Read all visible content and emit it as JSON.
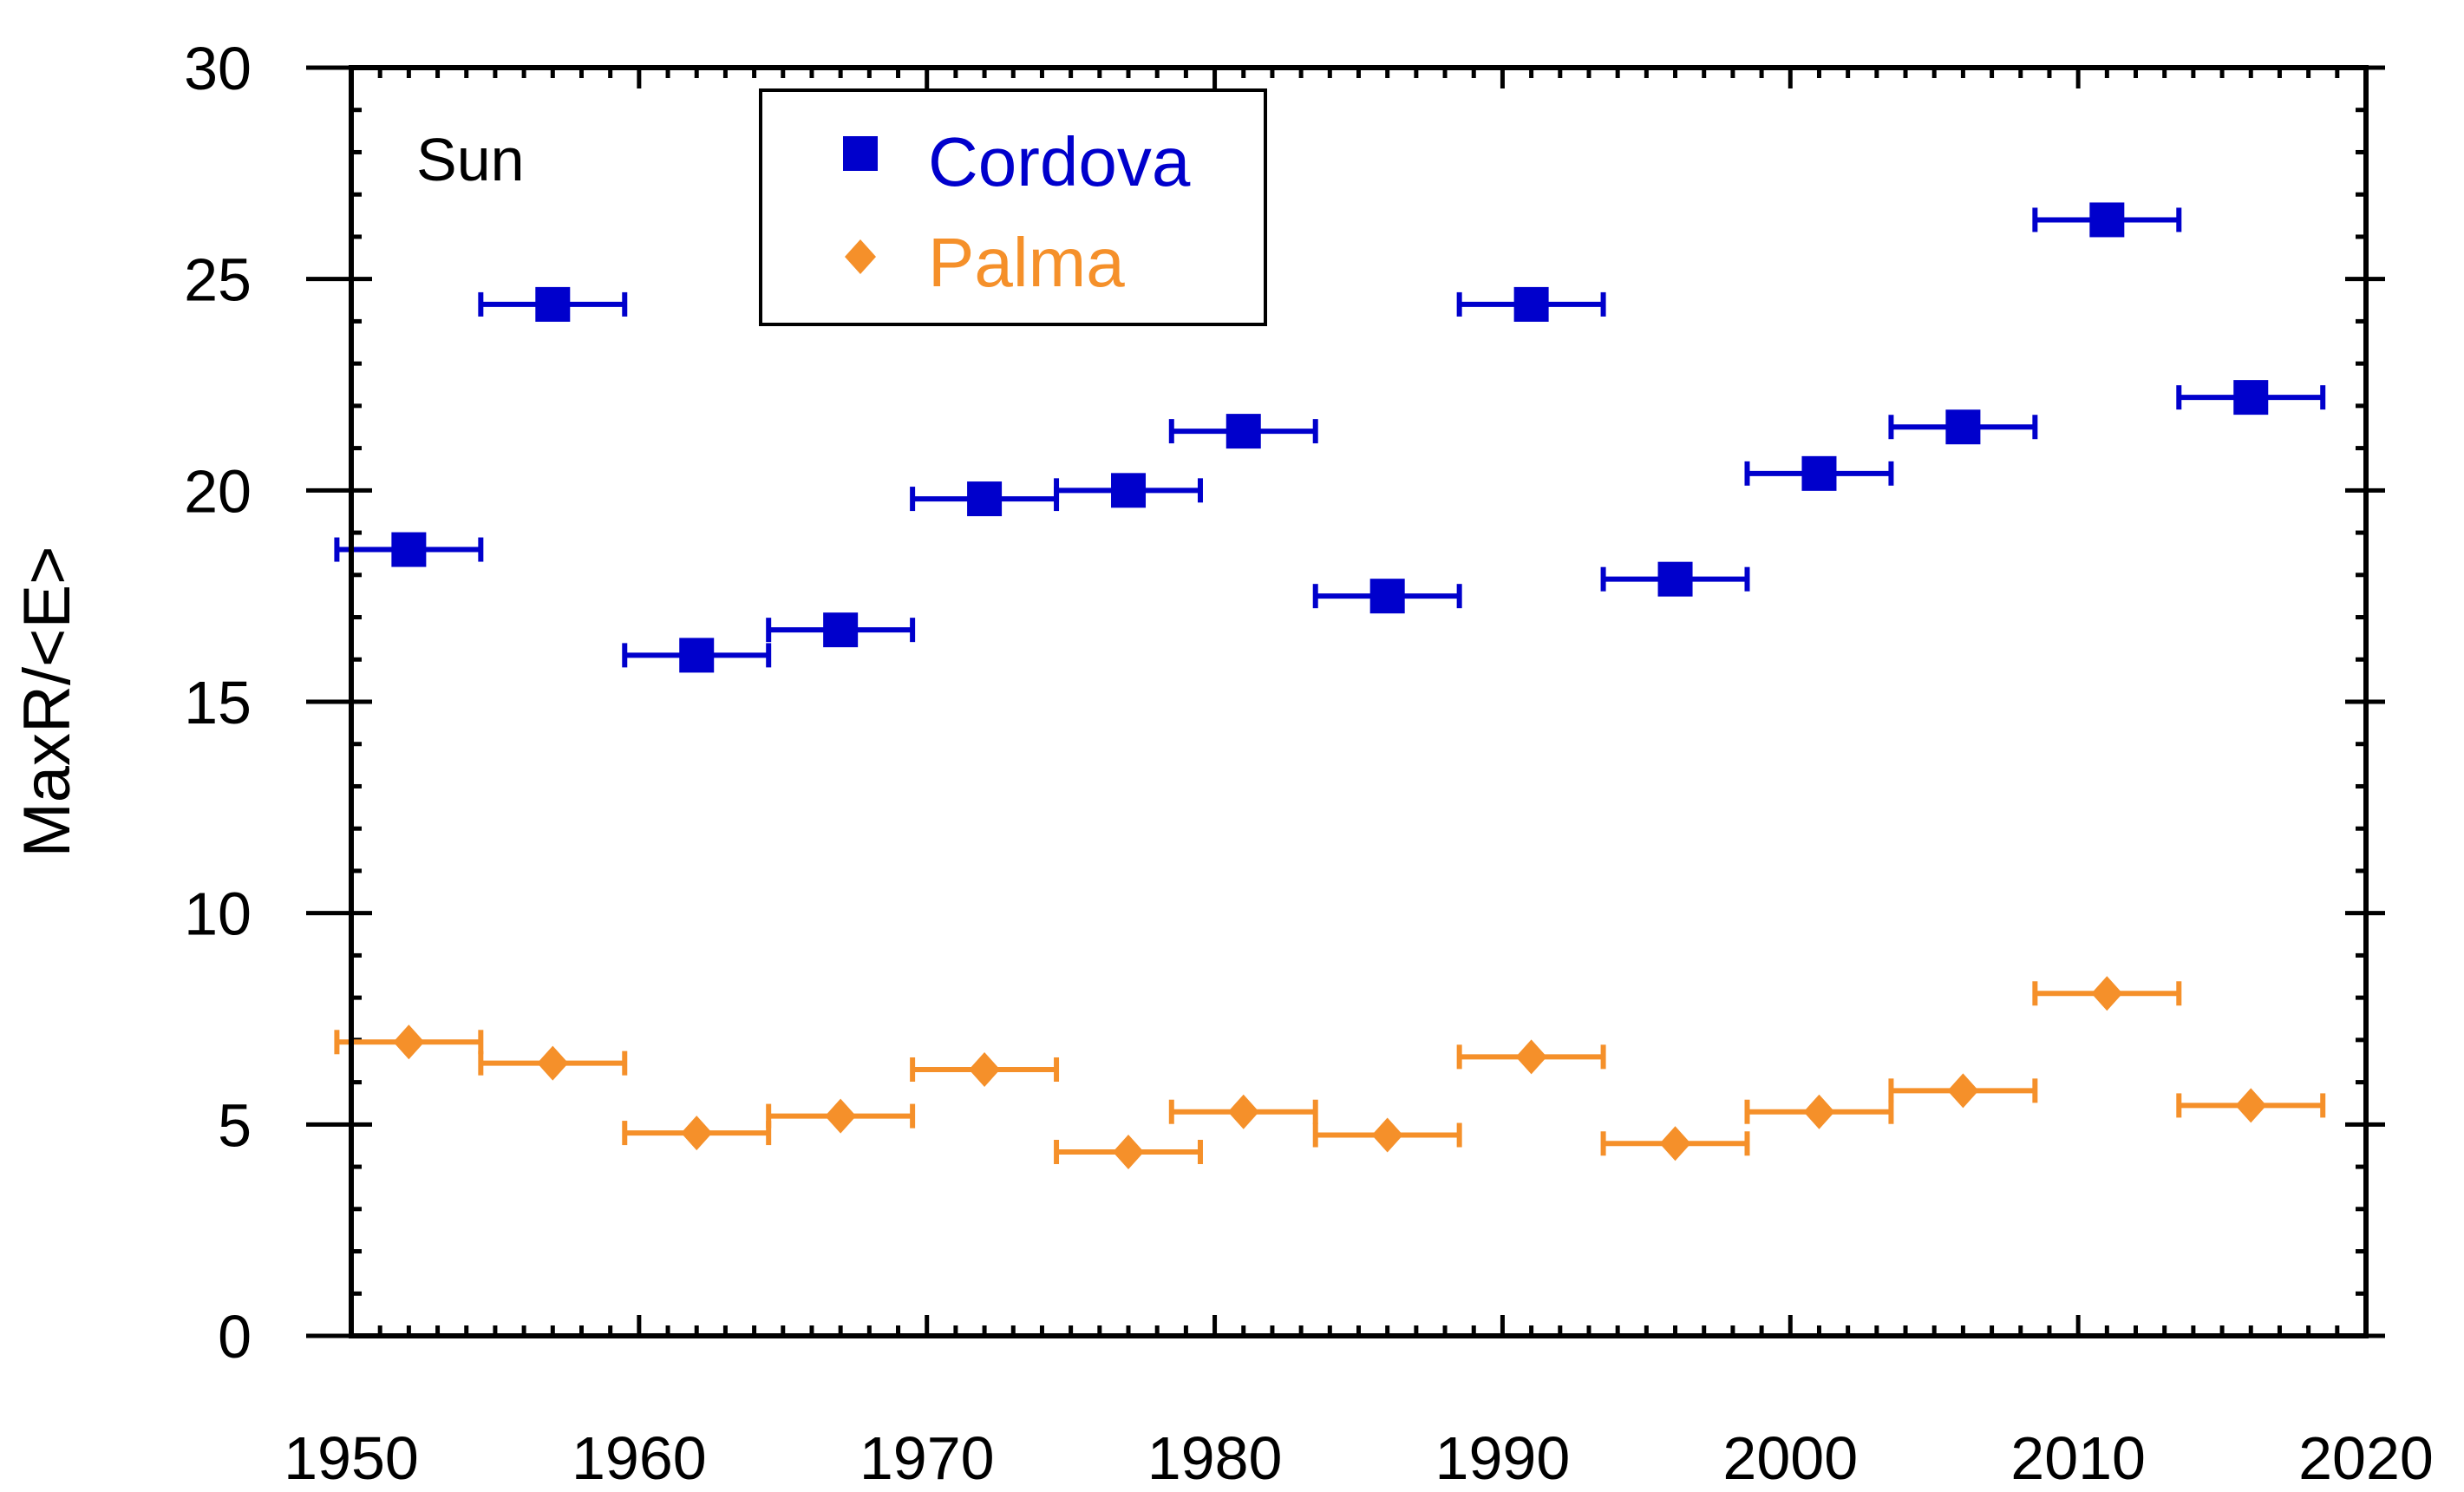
{
  "chart_data": {
    "type": "scatter",
    "title": "",
    "panel_label": "Sun",
    "xlabel": "",
    "ylabel": "MaxR/<E>",
    "xlim": [
      1950,
      2020
    ],
    "ylim": [
      0,
      30
    ],
    "x_ticks": [
      1950,
      1960,
      1970,
      1980,
      1990,
      2000,
      2010,
      2020
    ],
    "y_ticks": [
      0,
      5,
      10,
      15,
      20,
      25,
      30
    ],
    "x_tick_labels": [
      "1950",
      "1960",
      "1970",
      "1980",
      "1990",
      "2000",
      "2010",
      "2020"
    ],
    "y_tick_labels": [
      "0",
      "5",
      "10",
      "15",
      "20",
      "25",
      "30"
    ],
    "x_minor_step": 1,
    "y_minor_step": 1,
    "grid": false,
    "legend_position": "top-left",
    "series": [
      {
        "name": "Cordova",
        "color": "#0000cc",
        "marker": "square",
        "x_error_halfwidth": 2.5,
        "points": [
          {
            "x": 1952,
            "y": 18.6
          },
          {
            "x": 1957,
            "y": 24.4
          },
          {
            "x": 1962,
            "y": 16.1
          },
          {
            "x": 1967,
            "y": 16.7
          },
          {
            "x": 1972,
            "y": 19.8
          },
          {
            "x": 1977,
            "y": 20.0
          },
          {
            "x": 1981,
            "y": 21.4
          },
          {
            "x": 1986,
            "y": 17.5
          },
          {
            "x": 1991,
            "y": 24.4
          },
          {
            "x": 1996,
            "y": 17.9
          },
          {
            "x": 2001,
            "y": 20.4
          },
          {
            "x": 2006,
            "y": 21.5
          },
          {
            "x": 2011,
            "y": 26.4
          },
          {
            "x": 2016,
            "y": 22.2
          }
        ]
      },
      {
        "name": "Palma",
        "color": "#f5902a",
        "marker": "diamond",
        "x_error_halfwidth": 2.5,
        "points": [
          {
            "x": 1952,
            "y": 6.95
          },
          {
            "x": 1957,
            "y": 6.45
          },
          {
            "x": 1962,
            "y": 4.8
          },
          {
            "x": 1967,
            "y": 5.2
          },
          {
            "x": 1972,
            "y": 6.3
          },
          {
            "x": 1977,
            "y": 4.35
          },
          {
            "x": 1981,
            "y": 5.3
          },
          {
            "x": 1986,
            "y": 4.75
          },
          {
            "x": 1991,
            "y": 6.6
          },
          {
            "x": 1996,
            "y": 4.55
          },
          {
            "x": 2001,
            "y": 5.3
          },
          {
            "x": 2006,
            "y": 5.8
          },
          {
            "x": 2011,
            "y": 8.1
          },
          {
            "x": 2016,
            "y": 5.45
          }
        ]
      }
    ]
  }
}
